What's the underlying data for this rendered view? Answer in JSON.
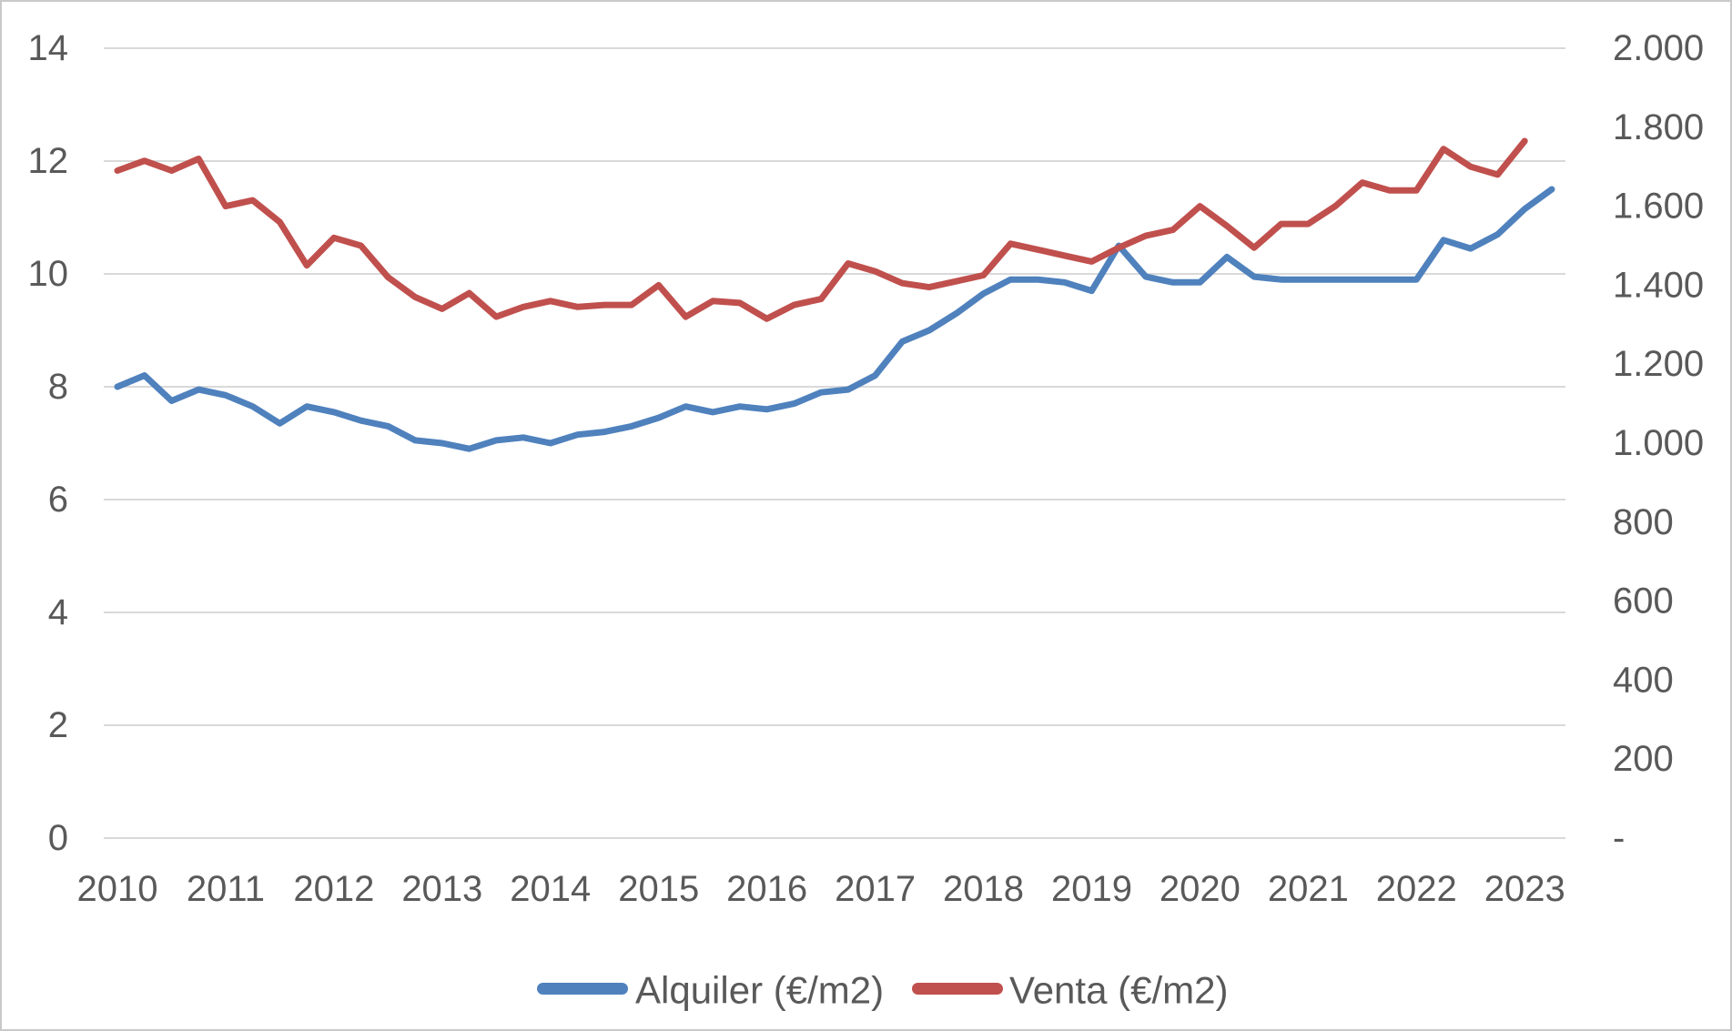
{
  "chart_data": {
    "type": "line",
    "title": "",
    "x_unit": "quarterly (4 points per year)",
    "x_categories_years": [
      "2010",
      "2011",
      "2012",
      "2013",
      "2014",
      "2015",
      "2016",
      "2017",
      "2018",
      "2019",
      "2020",
      "2021",
      "2022",
      "2023"
    ],
    "series": [
      {
        "name": "Alquiler (€/m2)",
        "axis": "left",
        "color": "#4F81BD",
        "start": "2010-Q1",
        "end": "2023-Q2",
        "values": [
          8.0,
          8.2,
          7.75,
          7.95,
          7.85,
          7.65,
          7.35,
          7.65,
          7.55,
          7.4,
          7.3,
          7.05,
          7.0,
          6.9,
          7.05,
          7.1,
          7.0,
          7.15,
          7.2,
          7.3,
          7.45,
          7.65,
          7.55,
          7.65,
          7.6,
          7.7,
          7.9,
          7.95,
          8.2,
          8.8,
          9.0,
          9.3,
          9.65,
          9.9,
          9.9,
          9.85,
          9.7,
          10.5,
          9.95,
          9.85,
          9.85,
          10.3,
          9.95,
          9.9,
          9.9,
          9.9,
          9.9,
          9.9,
          9.9,
          10.6,
          10.45,
          10.7,
          11.15,
          11.5
        ]
      },
      {
        "name": "Venta (€/m2)",
        "axis": "right",
        "color": "#C0504D",
        "start": "2010-Q1",
        "end": "2023-Q1",
        "values": [
          1690,
          1715,
          1690,
          1720,
          1600,
          1615,
          1560,
          1450,
          1520,
          1500,
          1420,
          1370,
          1340,
          1380,
          1320,
          1345,
          1360,
          1345,
          1350,
          1350,
          1400,
          1320,
          1360,
          1355,
          1315,
          1350,
          1365,
          1455,
          1435,
          1405,
          1395,
          1410,
          1425,
          1505,
          1490,
          1475,
          1460,
          1495,
          1525,
          1540,
          1600,
          1550,
          1495,
          1555,
          1555,
          1600,
          1660,
          1640,
          1640,
          1745,
          1700,
          1680,
          1765
        ]
      }
    ],
    "left_axis": {
      "min": 0,
      "max": 14,
      "step": 2,
      "labels": [
        "0",
        "2",
        "4",
        "6",
        "8",
        "10",
        "12",
        "14"
      ]
    },
    "right_axis": {
      "min": 0,
      "max": 2000,
      "step": 200,
      "labels": [
        "-",
        "200",
        "400",
        "600",
        "800",
        "1.000",
        "1.200",
        "1.400",
        "1.600",
        "1.800",
        "2.000"
      ]
    },
    "grid": true,
    "legend_position": "bottom-center"
  },
  "legend": {
    "alquiler": "Alquiler (€/m2)",
    "venta": "Venta (€/m2)"
  },
  "colors": {
    "alquiler": "#4F81BD",
    "venta": "#C0504D",
    "gridline": "#D9D9D9",
    "text": "#595959",
    "frame": "#C9C9C9"
  }
}
